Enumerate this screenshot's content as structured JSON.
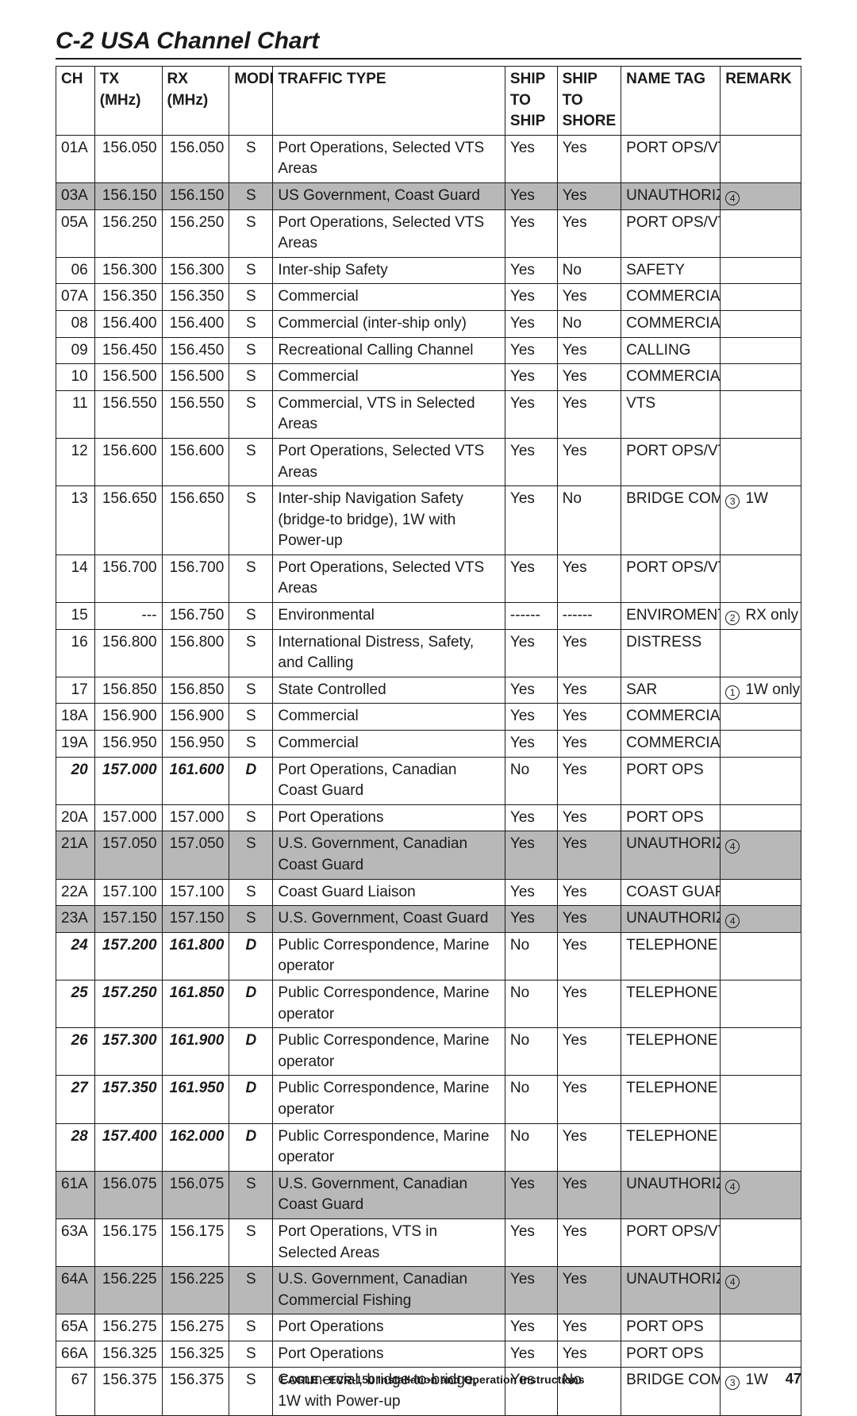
{
  "doc": {
    "heading": "C-2 USA Channel Chart",
    "footer_title": "EAGLE - EVR-150 Installation and Operation Instructions",
    "page_number": "47"
  },
  "table": {
    "columns": {
      "ch": "CH",
      "tx": "TX (MHz)",
      "rx": "RX (MHz)",
      "mode": "MODE",
      "tt": "TRAFFIC TYPE",
      "ship": "SHIP TO SHIP",
      "shore": "SHIP TO SHORE",
      "tag": "NAME TAG",
      "remark": "REMARK"
    },
    "rows": [
      {
        "ch": "01A",
        "tx": "156.050",
        "rx": "156.050",
        "mode": "S",
        "tt": "Port Operations, Selected VTS Areas",
        "ship": "Yes",
        "shore": "Yes",
        "tag": "PORT OPS/VTS",
        "remark": "",
        "shaded": false,
        "duplex": false
      },
      {
        "ch": "03A",
        "tx": "156.150",
        "rx": "156.150",
        "mode": "S",
        "tt": "US Government, Coast Guard",
        "ship": "Yes",
        "shore": "Yes",
        "tag": "UNAUTHORIZED",
        "remark": "④",
        "shaded": true,
        "duplex": false
      },
      {
        "ch": "05A",
        "tx": "156.250",
        "rx": "156.250",
        "mode": "S",
        "tt": "Port Operations, Selected VTS Areas",
        "ship": "Yes",
        "shore": "Yes",
        "tag": "PORT OPS/VTS",
        "remark": "",
        "shaded": false,
        "duplex": false
      },
      {
        "ch": "06",
        "tx": "156.300",
        "rx": "156.300",
        "mode": "S",
        "tt": "Inter-ship Safety",
        "ship": "Yes",
        "shore": "No",
        "tag": "SAFETY",
        "remark": "",
        "shaded": false,
        "duplex": false
      },
      {
        "ch": "07A",
        "tx": "156.350",
        "rx": "156.350",
        "mode": "S",
        "tt": "Commercial",
        "ship": "Yes",
        "shore": "Yes",
        "tag": "COMMERCIAL",
        "remark": "",
        "shaded": false,
        "duplex": false
      },
      {
        "ch": "08",
        "tx": "156.400",
        "rx": "156.400",
        "mode": "S",
        "tt": "Commercial (inter-ship only)",
        "ship": "Yes",
        "shore": "No",
        "tag": "COMMERCIAL",
        "remark": "",
        "shaded": false,
        "duplex": false
      },
      {
        "ch": "09",
        "tx": "156.450",
        "rx": "156.450",
        "mode": "S",
        "tt": "Recreational Calling Channel",
        "ship": "Yes",
        "shore": "Yes",
        "tag": "CALLING",
        "remark": "",
        "shaded": false,
        "duplex": false
      },
      {
        "ch": "10",
        "tx": "156.500",
        "rx": "156.500",
        "mode": "S",
        "tt": "Commercial",
        "ship": "Yes",
        "shore": "Yes",
        "tag": "COMMERCIAL",
        "remark": "",
        "shaded": false,
        "duplex": false
      },
      {
        "ch": "11",
        "tx": "156.550",
        "rx": "156.550",
        "mode": "S",
        "tt": "Commercial, VTS in Selected Areas",
        "ship": "Yes",
        "shore": "Yes",
        "tag": "VTS",
        "remark": "",
        "shaded": false,
        "duplex": false
      },
      {
        "ch": "12",
        "tx": "156.600",
        "rx": "156.600",
        "mode": "S",
        "tt": "Port Operations, Selected VTS Areas",
        "ship": "Yes",
        "shore": "Yes",
        "tag": "PORT OPS/VTS",
        "remark": "",
        "shaded": false,
        "duplex": false
      },
      {
        "ch": "13",
        "tx": "156.650",
        "rx": "156.650",
        "mode": "S",
        "tt": "Inter-ship Navigation Safety (bridge-to bridge), 1W with Power-up",
        "ship": "Yes",
        "shore": "No",
        "tag": "BRIDGE COM",
        "remark": "③ 1W",
        "shaded": false,
        "duplex": false
      },
      {
        "ch": "14",
        "tx": "156.700",
        "rx": "156.700",
        "mode": "S",
        "tt": "Port Operations, Selected VTS Areas",
        "ship": "Yes",
        "shore": "Yes",
        "tag": "PORT OPS/VTS",
        "remark": "",
        "shaded": false,
        "duplex": false
      },
      {
        "ch": "15",
        "tx": "---",
        "rx": "156.750",
        "mode": "S",
        "tt": "Environmental",
        "ship": "------",
        "shore": "------",
        "tag": "ENVIROMENTAL",
        "remark": "② RX only",
        "shaded": false,
        "duplex": false
      },
      {
        "ch": "16",
        "tx": "156.800",
        "rx": "156.800",
        "mode": "S",
        "tt": "International Distress, Safety, and Calling",
        "ship": "Yes",
        "shore": "Yes",
        "tag": "DISTRESS",
        "remark": "",
        "shaded": false,
        "duplex": false
      },
      {
        "ch": "17",
        "tx": "156.850",
        "rx": "156.850",
        "mode": "S",
        "tt": "State Controlled",
        "ship": "Yes",
        "shore": "Yes",
        "tag": "SAR",
        "remark": "① 1W only",
        "shaded": false,
        "duplex": false
      },
      {
        "ch": "18A",
        "tx": "156.900",
        "rx": "156.900",
        "mode": "S",
        "tt": "Commercial",
        "ship": "Yes",
        "shore": "Yes",
        "tag": "COMMERCIAL",
        "remark": "",
        "shaded": false,
        "duplex": false
      },
      {
        "ch": "19A",
        "tx": "156.950",
        "rx": "156.950",
        "mode": "S",
        "tt": "Commercial",
        "ship": "Yes",
        "shore": "Yes",
        "tag": "COMMERCIAL",
        "remark": "",
        "shaded": false,
        "duplex": false
      },
      {
        "ch": "20",
        "tx": "157.000",
        "rx": "161.600",
        "mode": "D",
        "tt": "Port Operations, Canadian Coast Guard",
        "ship": "No",
        "shore": "Yes",
        "tag": "PORT OPS",
        "remark": "",
        "shaded": false,
        "duplex": true
      },
      {
        "ch": "20A",
        "tx": "157.000",
        "rx": "157.000",
        "mode": "S",
        "tt": "Port Operations",
        "ship": "Yes",
        "shore": "Yes",
        "tag": "PORT OPS",
        "remark": "",
        "shaded": false,
        "duplex": false
      },
      {
        "ch": "21A",
        "tx": "157.050",
        "rx": "157.050",
        "mode": "S",
        "tt": "U.S. Government, Canadian Coast Guard",
        "ship": "Yes",
        "shore": "Yes",
        "tag": "UNAUTHORIZED",
        "remark": "④",
        "shaded": true,
        "duplex": false
      },
      {
        "ch": "22A",
        "tx": "157.100",
        "rx": "157.100",
        "mode": "S",
        "tt": "Coast Guard Liaison",
        "ship": "Yes",
        "shore": "Yes",
        "tag": "COAST GUARD",
        "remark": "",
        "shaded": false,
        "duplex": false
      },
      {
        "ch": "23A",
        "tx": "157.150",
        "rx": "157.150",
        "mode": "S",
        "tt": "U.S. Government, Coast Guard",
        "ship": "Yes",
        "shore": "Yes",
        "tag": "UNAUTHORIZED",
        "remark": "④",
        "shaded": true,
        "duplex": false
      },
      {
        "ch": "24",
        "tx": "157.200",
        "rx": "161.800",
        "mode": "D",
        "tt": "Public Correspondence, Marine operator",
        "ship": "No",
        "shore": "Yes",
        "tag": "TELEPHONE",
        "remark": "",
        "shaded": false,
        "duplex": true
      },
      {
        "ch": "25",
        "tx": "157.250",
        "rx": "161.850",
        "mode": "D",
        "tt": "Public Correspondence, Marine operator",
        "ship": "No",
        "shore": "Yes",
        "tag": "TELEPHONE",
        "remark": "",
        "shaded": false,
        "duplex": true
      },
      {
        "ch": "26",
        "tx": "157.300",
        "rx": "161.900",
        "mode": "D",
        "tt": "Public Correspondence, Marine operator",
        "ship": "No",
        "shore": "Yes",
        "tag": "TELEPHONE",
        "remark": "",
        "shaded": false,
        "duplex": true
      },
      {
        "ch": "27",
        "tx": "157.350",
        "rx": "161.950",
        "mode": "D",
        "tt": "Public Correspondence, Marine operator",
        "ship": "No",
        "shore": "Yes",
        "tag": "TELEPHONE",
        "remark": "",
        "shaded": false,
        "duplex": true
      },
      {
        "ch": "28",
        "tx": "157.400",
        "rx": "162.000",
        "mode": "D",
        "tt": "Public Correspondence, Marine operator",
        "ship": "No",
        "shore": "Yes",
        "tag": "TELEPHONE",
        "remark": "",
        "shaded": false,
        "duplex": true
      },
      {
        "ch": "61A",
        "tx": "156.075",
        "rx": "156.075",
        "mode": "S",
        "tt": "U.S. Government, Canadian Coast Guard",
        "ship": "Yes",
        "shore": "Yes",
        "tag": "UNAUTHORIZED",
        "remark": "④",
        "shaded": true,
        "duplex": false
      },
      {
        "ch": "63A",
        "tx": "156.175",
        "rx": "156.175",
        "mode": "S",
        "tt": "Port Operations, VTS in Selected Areas",
        "ship": "Yes",
        "shore": "Yes",
        "tag": "PORT OPS/VTS",
        "remark": "",
        "shaded": false,
        "duplex": false
      },
      {
        "ch": "64A",
        "tx": "156.225",
        "rx": "156.225",
        "mode": "S",
        "tt": "U.S. Government, Canadian Commercial Fishing",
        "ship": "Yes",
        "shore": "Yes",
        "tag": "UNAUTHORIZED",
        "remark": "④",
        "shaded": true,
        "duplex": false
      },
      {
        "ch": "65A",
        "tx": "156.275",
        "rx": "156.275",
        "mode": "S",
        "tt": "Port Operations",
        "ship": "Yes",
        "shore": "Yes",
        "tag": "PORT OPS",
        "remark": "",
        "shaded": false,
        "duplex": false
      },
      {
        "ch": "66A",
        "tx": "156.325",
        "rx": "156.325",
        "mode": "S",
        "tt": "Port Operations",
        "ship": "Yes",
        "shore": "Yes",
        "tag": "PORT OPS",
        "remark": "",
        "shaded": false,
        "duplex": false
      },
      {
        "ch": "67",
        "tx": "156.375",
        "rx": "156.375",
        "mode": "S",
        "tt": "Commercial, bridge-to-bridge, 1W with Power-up",
        "ship": "Yes",
        "shore": "No",
        "tag": "BRIDGE COM",
        "remark": "③ 1W",
        "shaded": false,
        "duplex": false
      }
    ]
  }
}
